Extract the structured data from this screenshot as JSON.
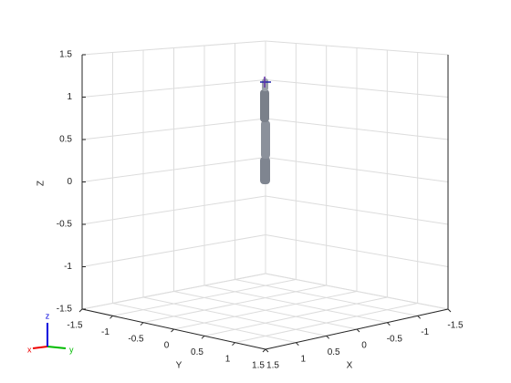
{
  "chart_data": {
    "type": "axes3d",
    "xlabel": "X",
    "ylabel": "Y",
    "zlabel": "Z",
    "xlim": [
      -1.5,
      1.5
    ],
    "ylim": [
      -1.5,
      1.5
    ],
    "zlim": [
      -1.5,
      1.5
    ],
    "xticks": [
      -1.5,
      -1,
      -0.5,
      0,
      0.5,
      1,
      1.5
    ],
    "yticks": [
      -1.5,
      -1,
      -0.5,
      0,
      0.5,
      1,
      1.5
    ],
    "zticks": [
      -1.5,
      -1,
      -0.5,
      0,
      0.5,
      1,
      1.5
    ],
    "grid": true
  },
  "triad": {
    "x": "x",
    "y": "y",
    "z": "z"
  }
}
